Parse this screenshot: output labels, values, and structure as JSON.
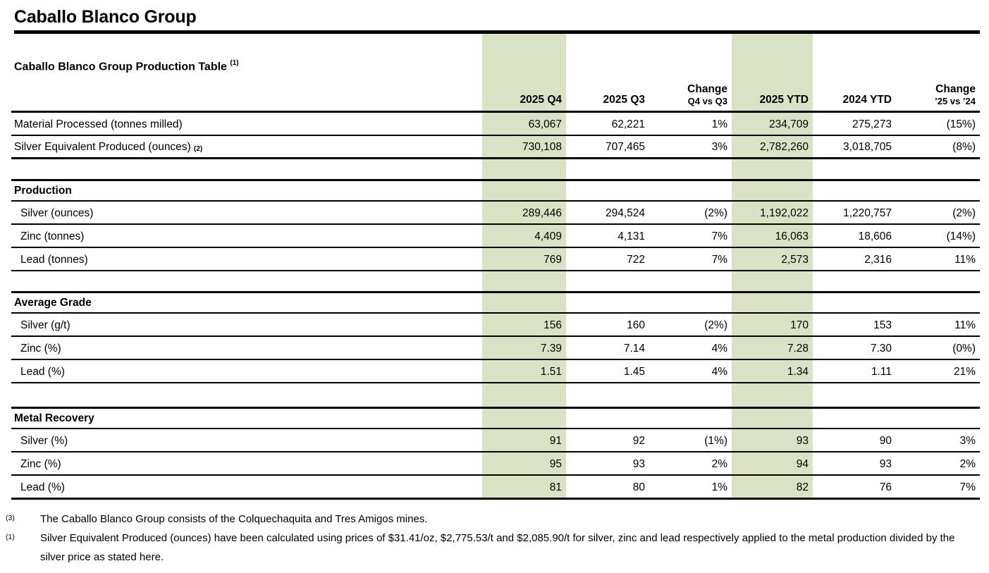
{
  "page_title": "Caballo Blanco Group",
  "colors": {
    "highlight_green": "#d9e2c4"
  },
  "table": {
    "caption": "Caballo Blanco Group Production Table",
    "caption_ref": "(1)",
    "col_headers": {
      "q4": "2025 Q4",
      "q3": "2025 Q3",
      "chg_label_q": "Change",
      "chg_q": "Q4 vs Q3",
      "ytd25": "2025 YTD",
      "ytd24": "2024 YTD",
      "chg_label_y": "Change",
      "chg_y": "’25 vs ’24"
    },
    "top_rows": [
      {
        "label": "Material Processed (tonnes milled)",
        "ref": "",
        "v": [
          "63,067",
          "62,221",
          "1%",
          "234,709",
          "275,273",
          "(15%)"
        ]
      },
      {
        "label": "Silver Equivalent Produced (ounces)",
        "ref": "(2)",
        "v": [
          "730,108",
          "707,465",
          "3%",
          "2,782,260",
          "3,018,705",
          "(8%)"
        ]
      }
    ],
    "sections": [
      {
        "title": "Production",
        "rows": [
          {
            "label": "Silver (ounces)",
            "v": [
              "289,446",
              "294,524",
              "(2%)",
              "1,192,022",
              "1,220,757",
              "(2%)"
            ]
          },
          {
            "label": "Zinc (tonnes)",
            "v": [
              "4,409",
              "4,131",
              "7%",
              "16,063",
              "18,606",
              "(14%)"
            ]
          },
          {
            "label": "Lead (tonnes)",
            "v": [
              "769",
              "722",
              "7%",
              "2,573",
              "2,316",
              "11%"
            ]
          }
        ]
      },
      {
        "title": "Average Grade",
        "rows": [
          {
            "label": "Silver (g/t)",
            "v": [
              "156",
              "160",
              "(2%)",
              "170",
              "153",
              "11%"
            ]
          },
          {
            "label": "Zinc (%)",
            "v": [
              "7.39",
              "7.14",
              "4%",
              "7.28",
              "7.30",
              "(0%)"
            ]
          },
          {
            "label": "Lead (%)",
            "v": [
              "1.51",
              "1.45",
              "4%",
              "1.34",
              "1.11",
              "21%"
            ]
          }
        ]
      },
      {
        "title": "Metal Recovery",
        "rows": [
          {
            "label": "Silver (%)",
            "v": [
              "91",
              "92",
              "(1%)",
              "93",
              "90",
              "3%"
            ]
          },
          {
            "label": "Zinc (%)",
            "v": [
              "95",
              "93",
              "2%",
              "94",
              "93",
              "2%"
            ]
          },
          {
            "label": "Lead (%)",
            "v": [
              "81",
              "80",
              "1%",
              "82",
              "76",
              "7%"
            ]
          }
        ]
      }
    ]
  },
  "footnotes": [
    {
      "marker": "(3)",
      "text": "The Caballo Blanco Group consists of the Colquechaquita and Tres Amigos mines."
    },
    {
      "marker": "(1)",
      "text": "Silver Equivalent Produced (ounces) have been calculated using prices of $31.41/oz, $2,775.53/t and $2,085.90/t for silver, zinc and lead respectively applied to the metal production divided by the silver price as stated here."
    }
  ]
}
